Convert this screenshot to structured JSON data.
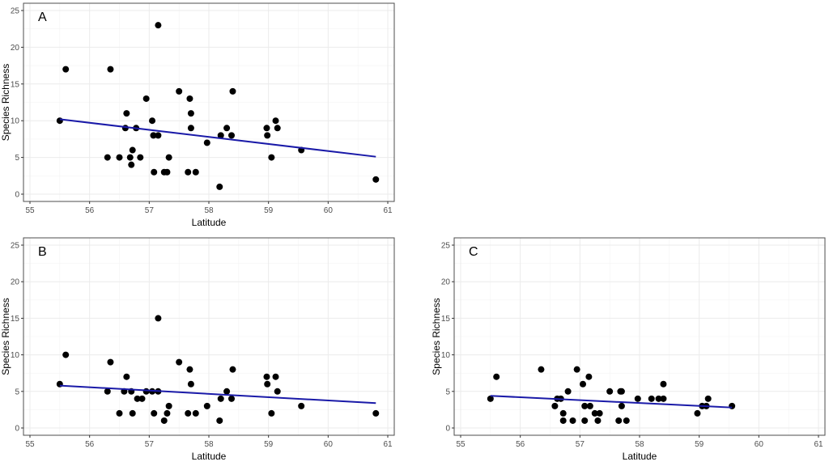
{
  "colors": {
    "point": "#000000",
    "fit_line": "#1a1aa8",
    "grid": "#ebebeb",
    "border": "#4d4d4d"
  },
  "chart_data": [
    {
      "type": "scatter",
      "panel": "A",
      "xlabel": "Latitude",
      "ylabel": "Species Richness",
      "xlim": [
        55,
        61
      ],
      "ylim": [
        0,
        25
      ],
      "xticks": [
        55,
        56,
        57,
        58,
        59,
        60,
        61
      ],
      "yticks": [
        0,
        5,
        10,
        15,
        20,
        25
      ],
      "grid": true,
      "points": [
        [
          55.5,
          10
        ],
        [
          55.6,
          17
        ],
        [
          56.3,
          5
        ],
        [
          56.35,
          17
        ],
        [
          56.5,
          5
        ],
        [
          56.6,
          9
        ],
        [
          56.62,
          11
        ],
        [
          56.68,
          5
        ],
        [
          56.7,
          4
        ],
        [
          56.72,
          6
        ],
        [
          56.78,
          9
        ],
        [
          56.85,
          5
        ],
        [
          56.95,
          13
        ],
        [
          57.05,
          10
        ],
        [
          57.07,
          8
        ],
        [
          57.08,
          3
        ],
        [
          57.15,
          8
        ],
        [
          57.15,
          23
        ],
        [
          57.25,
          3
        ],
        [
          57.3,
          3
        ],
        [
          57.33,
          5
        ],
        [
          57.5,
          14
        ],
        [
          57.65,
          3
        ],
        [
          57.68,
          13
        ],
        [
          57.7,
          11
        ],
        [
          57.7,
          9
        ],
        [
          57.78,
          3
        ],
        [
          57.97,
          7
        ],
        [
          58.18,
          1
        ],
        [
          58.2,
          8
        ],
        [
          58.3,
          9
        ],
        [
          58.38,
          8
        ],
        [
          58.4,
          14
        ],
        [
          58.97,
          9
        ],
        [
          58.98,
          8
        ],
        [
          59.05,
          5
        ],
        [
          59.12,
          10
        ],
        [
          59.15,
          9
        ],
        [
          59.55,
          6
        ],
        [
          60.8,
          2
        ]
      ],
      "fit": {
        "x": [
          55.5,
          60.8
        ],
        "y": [
          10.2,
          5.1
        ]
      }
    },
    {
      "type": "scatter",
      "panel": "B",
      "xlabel": "Latitude",
      "ylabel": "Species Richness",
      "xlim": [
        55,
        61
      ],
      "ylim": [
        0,
        25
      ],
      "xticks": [
        55,
        56,
        57,
        58,
        59,
        60,
        61
      ],
      "yticks": [
        0,
        5,
        10,
        15,
        20,
        25
      ],
      "grid": true,
      "points": [
        [
          55.5,
          6
        ],
        [
          55.6,
          10
        ],
        [
          56.3,
          5
        ],
        [
          56.35,
          9
        ],
        [
          56.5,
          2
        ],
        [
          56.58,
          5
        ],
        [
          56.62,
          7
        ],
        [
          56.7,
          5
        ],
        [
          56.72,
          2
        ],
        [
          56.8,
          4
        ],
        [
          56.88,
          4
        ],
        [
          56.95,
          5
        ],
        [
          57.05,
          5
        ],
        [
          57.08,
          2
        ],
        [
          57.15,
          5
        ],
        [
          57.15,
          15
        ],
        [
          57.25,
          1
        ],
        [
          57.3,
          2
        ],
        [
          57.33,
          3
        ],
        [
          57.5,
          9
        ],
        [
          57.65,
          2
        ],
        [
          57.68,
          8
        ],
        [
          57.7,
          6
        ],
        [
          57.78,
          2
        ],
        [
          57.97,
          3
        ],
        [
          58.18,
          1
        ],
        [
          58.2,
          4
        ],
        [
          58.3,
          5
        ],
        [
          58.38,
          4
        ],
        [
          58.4,
          8
        ],
        [
          58.97,
          7
        ],
        [
          58.98,
          6
        ],
        [
          59.05,
          2
        ],
        [
          59.12,
          7
        ],
        [
          59.15,
          5
        ],
        [
          59.55,
          3
        ],
        [
          60.8,
          2
        ]
      ],
      "fit": {
        "x": [
          55.5,
          60.8
        ],
        "y": [
          5.8,
          3.4
        ]
      }
    },
    {
      "type": "scatter",
      "panel": "C",
      "xlabel": "Latitude",
      "ylabel": "Species Richness",
      "xlim": [
        55,
        61
      ],
      "ylim": [
        0,
        25
      ],
      "xticks": [
        55,
        56,
        57,
        58,
        59,
        60,
        61
      ],
      "yticks": [
        0,
        5,
        10,
        15,
        20,
        25
      ],
      "grid": true,
      "points": [
        [
          55.5,
          4
        ],
        [
          55.6,
          7
        ],
        [
          56.35,
          8
        ],
        [
          56.58,
          3
        ],
        [
          56.62,
          4
        ],
        [
          56.68,
          4
        ],
        [
          56.72,
          2
        ],
        [
          56.72,
          1
        ],
        [
          56.8,
          5
        ],
        [
          56.88,
          1
        ],
        [
          56.95,
          8
        ],
        [
          57.05,
          6
        ],
        [
          57.08,
          3
        ],
        [
          57.08,
          1
        ],
        [
          57.15,
          7
        ],
        [
          57.17,
          3
        ],
        [
          57.25,
          2
        ],
        [
          57.3,
          1
        ],
        [
          57.33,
          2
        ],
        [
          57.5,
          5
        ],
        [
          57.65,
          1
        ],
        [
          57.68,
          5
        ],
        [
          57.7,
          5
        ],
        [
          57.7,
          3
        ],
        [
          57.78,
          1
        ],
        [
          57.97,
          4
        ],
        [
          58.2,
          4
        ],
        [
          58.32,
          4
        ],
        [
          58.4,
          4
        ],
        [
          58.4,
          6
        ],
        [
          58.97,
          2
        ],
        [
          59.05,
          3
        ],
        [
          59.12,
          3
        ],
        [
          59.15,
          4
        ],
        [
          59.55,
          3
        ]
      ],
      "fit": {
        "x": [
          55.5,
          59.55
        ],
        "y": [
          4.4,
          2.8
        ]
      }
    }
  ]
}
